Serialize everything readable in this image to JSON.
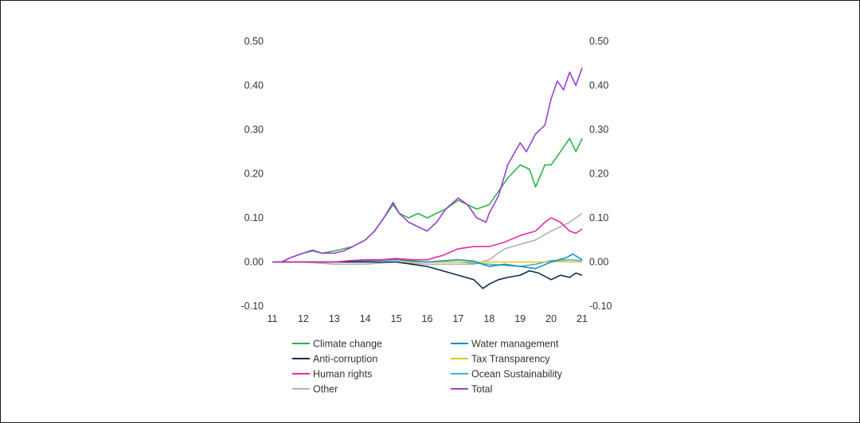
{
  "chart_data": {
    "type": "line",
    "title": "",
    "xlabel": "",
    "ylabel": "",
    "x_ticks": [
      "11",
      "12",
      "13",
      "14",
      "15",
      "16",
      "17",
      "18",
      "19",
      "20",
      "21"
    ],
    "y_ticks_left": [
      "0.50",
      "0.40",
      "0.30",
      "0.20",
      "0.10",
      "0.00",
      "-0.10"
    ],
    "y_ticks_right": [
      "0.50",
      "0.40",
      "0.30",
      "0.20",
      "0.10",
      "0.00",
      "-0.10"
    ],
    "ylim": [
      -0.1,
      0.5
    ],
    "xlim": [
      11,
      21
    ],
    "zero_line": true,
    "legend_position": "bottom",
    "series": [
      {
        "name": "Climate change",
        "color": "#2db24a",
        "points": [
          [
            11,
            0
          ],
          [
            11.3,
            0
          ],
          [
            11.6,
            0.01
          ],
          [
            12,
            0.02
          ],
          [
            12.3,
            0.025
          ],
          [
            12.6,
            0.02
          ],
          [
            13,
            0.025
          ],
          [
            13.3,
            0.03
          ],
          [
            13.6,
            0.035
          ],
          [
            14,
            0.05
          ],
          [
            14.3,
            0.07
          ],
          [
            14.6,
            0.1
          ],
          [
            14.9,
            0.13
          ],
          [
            15.1,
            0.11
          ],
          [
            15.4,
            0.1
          ],
          [
            15.7,
            0.11
          ],
          [
            16,
            0.1
          ],
          [
            16.3,
            0.11
          ],
          [
            16.6,
            0.12
          ],
          [
            17,
            0.14
          ],
          [
            17.3,
            0.13
          ],
          [
            17.6,
            0.12
          ],
          [
            18,
            0.13
          ],
          [
            18.3,
            0.16
          ],
          [
            18.6,
            0.19
          ],
          [
            19,
            0.22
          ],
          [
            19.3,
            0.21
          ],
          [
            19.5,
            0.17
          ],
          [
            19.8,
            0.22
          ],
          [
            20,
            0.22
          ],
          [
            20.3,
            0.25
          ],
          [
            20.6,
            0.28
          ],
          [
            20.8,
            0.25
          ],
          [
            21,
            0.28
          ]
        ]
      },
      {
        "name": "Anti-corruption",
        "color": "#0d2d4f",
        "points": [
          [
            11,
            0
          ],
          [
            12,
            0
          ],
          [
            13,
            0
          ],
          [
            14,
            0
          ],
          [
            15,
            0
          ],
          [
            15.5,
            -0.005
          ],
          [
            16,
            -0.01
          ],
          [
            16.5,
            -0.02
          ],
          [
            17,
            -0.03
          ],
          [
            17.5,
            -0.04
          ],
          [
            17.8,
            -0.06
          ],
          [
            18,
            -0.05
          ],
          [
            18.3,
            -0.04
          ],
          [
            18.6,
            -0.035
          ],
          [
            19,
            -0.03
          ],
          [
            19.3,
            -0.02
          ],
          [
            19.6,
            -0.025
          ],
          [
            20,
            -0.04
          ],
          [
            20.3,
            -0.03
          ],
          [
            20.6,
            -0.035
          ],
          [
            20.8,
            -0.025
          ],
          [
            21,
            -0.03
          ]
        ]
      },
      {
        "name": "Human rights",
        "color": "#e62aa6",
        "points": [
          [
            11,
            0
          ],
          [
            12,
            0
          ],
          [
            13,
            0
          ],
          [
            13.5,
            0.003
          ],
          [
            14,
            0.005
          ],
          [
            14.5,
            0.005
          ],
          [
            15,
            0.008
          ],
          [
            15.5,
            0.005
          ],
          [
            16,
            0.005
          ],
          [
            16.5,
            0.015
          ],
          [
            17,
            0.03
          ],
          [
            17.5,
            0.035
          ],
          [
            18,
            0.035
          ],
          [
            18.5,
            0.045
          ],
          [
            19,
            0.06
          ],
          [
            19.5,
            0.07
          ],
          [
            19.8,
            0.09
          ],
          [
            20,
            0.1
          ],
          [
            20.3,
            0.09
          ],
          [
            20.6,
            0.07
          ],
          [
            20.8,
            0.065
          ],
          [
            21,
            0.075
          ]
        ]
      },
      {
        "name": "Other",
        "color": "#b3b3b3",
        "points": [
          [
            11,
            0
          ],
          [
            12,
            0
          ],
          [
            13,
            -0.005
          ],
          [
            14,
            -0.005
          ],
          [
            15,
            0.0
          ],
          [
            16,
            -0.005
          ],
          [
            17,
            -0.005
          ],
          [
            17.5,
            -0.005
          ],
          [
            18,
            0.005
          ],
          [
            18.5,
            0.03
          ],
          [
            19,
            0.04
          ],
          [
            19.5,
            0.05
          ],
          [
            20,
            0.07
          ],
          [
            20.3,
            0.08
          ],
          [
            20.6,
            0.09
          ],
          [
            20.8,
            0.1
          ],
          [
            21,
            0.11
          ]
        ]
      },
      {
        "name": "Water management",
        "color": "#1a8fbf",
        "points": [
          [
            11,
            0
          ],
          [
            12,
            0
          ],
          [
            13,
            0
          ],
          [
            14,
            0.003
          ],
          [
            15,
            0.005
          ],
          [
            16,
            0.0
          ],
          [
            17,
            0.005
          ],
          [
            17.5,
            0.002
          ],
          [
            18,
            -0.01
          ],
          [
            18.5,
            -0.005
          ],
          [
            19,
            -0.01
          ],
          [
            19.5,
            -0.015
          ],
          [
            20,
            0.0
          ],
          [
            20.5,
            0.01
          ],
          [
            20.7,
            0.018
          ],
          [
            21,
            0.005
          ]
        ]
      },
      {
        "name": "Tax Transparency",
        "color": "#e8c51a",
        "points": [
          [
            11,
            0
          ],
          [
            20,
            0
          ],
          [
            20.3,
            0.002
          ],
          [
            20.6,
            0
          ],
          [
            21,
            0
          ]
        ]
      },
      {
        "name": "Ocean Sustainability",
        "color": "#3fb4d8",
        "points": [
          [
            11,
            0
          ],
          [
            17,
            0
          ],
          [
            18,
            -0.005
          ],
          [
            19,
            -0.01
          ],
          [
            19.5,
            -0.005
          ],
          [
            20,
            0.003
          ],
          [
            20.5,
            0.005
          ],
          [
            21,
            0.003
          ]
        ]
      },
      {
        "name": "Total",
        "color": "#9b3fd1",
        "points": [
          [
            11,
            0
          ],
          [
            11.3,
            0
          ],
          [
            11.6,
            0.01
          ],
          [
            12,
            0.02
          ],
          [
            12.3,
            0.027
          ],
          [
            12.6,
            0.02
          ],
          [
            13,
            0.02
          ],
          [
            13.3,
            0.025
          ],
          [
            13.6,
            0.035
          ],
          [
            14,
            0.05
          ],
          [
            14.3,
            0.07
          ],
          [
            14.6,
            0.1
          ],
          [
            14.9,
            0.135
          ],
          [
            15.1,
            0.11
          ],
          [
            15.4,
            0.09
          ],
          [
            15.7,
            0.08
          ],
          [
            16,
            0.07
          ],
          [
            16.3,
            0.09
          ],
          [
            16.6,
            0.12
          ],
          [
            17,
            0.145
          ],
          [
            17.3,
            0.13
          ],
          [
            17.6,
            0.1
          ],
          [
            17.9,
            0.09
          ],
          [
            18,
            0.11
          ],
          [
            18.3,
            0.15
          ],
          [
            18.6,
            0.22
          ],
          [
            19,
            0.27
          ],
          [
            19.2,
            0.25
          ],
          [
            19.5,
            0.29
          ],
          [
            19.8,
            0.31
          ],
          [
            20,
            0.37
          ],
          [
            20.2,
            0.41
          ],
          [
            20.4,
            0.39
          ],
          [
            20.6,
            0.43
          ],
          [
            20.8,
            0.4
          ],
          [
            21,
            0.44
          ]
        ]
      }
    ],
    "legend": [
      {
        "label": "Climate change",
        "color": "#2db24a"
      },
      {
        "label": "Water management",
        "color": "#1a8fbf"
      },
      {
        "label": "Anti-corruption",
        "color": "#0d2d4f"
      },
      {
        "label": "Tax Transparency",
        "color": "#e8c51a"
      },
      {
        "label": "Human rights",
        "color": "#e62aa6"
      },
      {
        "label": "Ocean Sustainability",
        "color": "#3fb4d8"
      },
      {
        "label": "Other",
        "color": "#b3b3b3"
      },
      {
        "label": "Total",
        "color": "#9b3fd1"
      }
    ]
  }
}
